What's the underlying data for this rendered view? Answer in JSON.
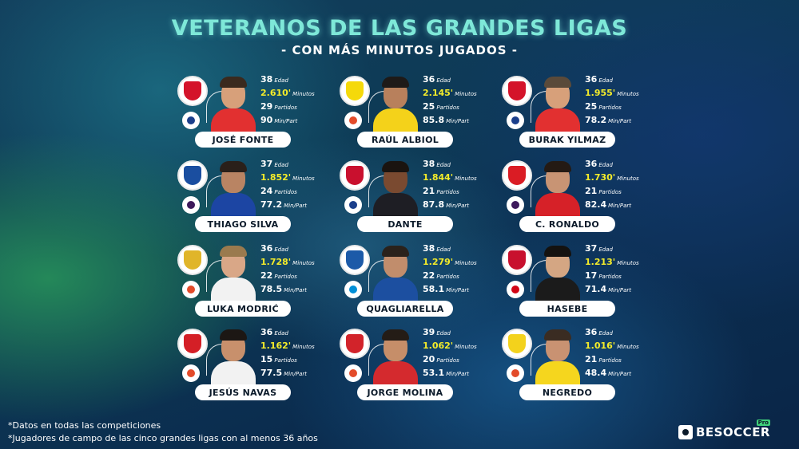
{
  "header": {
    "title": "VETERANOS DE LAS GRANDES LIGAS",
    "subtitle": "- CON MÁS MINUTOS JUGADOS -"
  },
  "labels": {
    "age": "Edad",
    "minutes": "Minutos",
    "matches": "Partidos",
    "min_per_match": "Min/Part"
  },
  "players": [
    {
      "name": "JOSÉ FONTE",
      "age": "38",
      "minutes": "2.610'",
      "matches": "29",
      "min_per_match": "90",
      "club_color": "#d4132a",
      "league_color": "#1b3f8b",
      "shirt_color": "#e23030",
      "skin": "#d7a07a",
      "hair": "#3a2a1e"
    },
    {
      "name": "RAÚL ALBIOL",
      "age": "36",
      "minutes": "2.145'",
      "matches": "25",
      "min_per_match": "85.8",
      "club_color": "#f5d90a",
      "league_color": "#e34b2a",
      "shirt_color": "#f4d21a",
      "skin": "#b8805c",
      "hair": "#1e1a18"
    },
    {
      "name": "BURAK YILMAZ",
      "age": "36",
      "minutes": "1.955'",
      "matches": "25",
      "min_per_match": "78.2",
      "club_color": "#d4132a",
      "league_color": "#1b3f8b",
      "shirt_color": "#e23030",
      "skin": "#d7a07a",
      "hair": "#5a4a3a"
    },
    {
      "name": "THIAGO SILVA",
      "age": "37",
      "minutes": "1.852'",
      "matches": "24",
      "min_per_match": "77.2",
      "club_color": "#1a4ea0",
      "league_color": "#3d195b",
      "shirt_color": "#1c45a3",
      "skin": "#b98463",
      "hair": "#2a201a"
    },
    {
      "name": "DANTE",
      "age": "38",
      "minutes": "1.844'",
      "matches": "21",
      "min_per_match": "87.8",
      "club_color": "#c9102e",
      "league_color": "#1b3f8b",
      "shirt_color": "#1e1e24",
      "skin": "#7a4a30",
      "hair": "#1a1410"
    },
    {
      "name": "C. RONALDO",
      "age": "36",
      "minutes": "1.730'",
      "matches": "21",
      "min_per_match": "82.4",
      "club_color": "#da1c24",
      "league_color": "#3d195b",
      "shirt_color": "#d62128",
      "skin": "#c89474",
      "hair": "#241a14"
    },
    {
      "name": "LUKA MODRIĆ",
      "age": "36",
      "minutes": "1.728'",
      "matches": "22",
      "min_per_match": "78.5",
      "club_color": "#e0b52a",
      "league_color": "#e34b2a",
      "shirt_color": "#f2f2f2",
      "skin": "#d9a787",
      "hair": "#9a7a4e"
    },
    {
      "name": "QUAGLIARELLA",
      "age": "38",
      "minutes": "1.279'",
      "matches": "22",
      "min_per_match": "58.1",
      "club_color": "#1c5aa8",
      "league_color": "#008fd7",
      "shirt_color": "#1c4fa0",
      "skin": "#c18d6c",
      "hair": "#2a221c"
    },
    {
      "name": "HASEBE",
      "age": "37",
      "minutes": "1.213'",
      "matches": "17",
      "min_per_match": "71.4",
      "club_color": "#c8102e",
      "league_color": "#d20515",
      "shirt_color": "#1b1b1b",
      "skin": "#d4a683",
      "hair": "#141210"
    },
    {
      "name": "JESÚS NAVAS",
      "age": "36",
      "minutes": "1.162'",
      "matches": "15",
      "min_per_match": "77.5",
      "club_color": "#d41f26",
      "league_color": "#e34b2a",
      "shirt_color": "#f2f2f2",
      "skin": "#c8906c",
      "hair": "#1c1714"
    },
    {
      "name": "JORGE MOLINA",
      "age": "39",
      "minutes": "1.062'",
      "matches": "20",
      "min_per_match": "53.1",
      "club_color": "#d2232a",
      "league_color": "#e34b2a",
      "shirt_color": "#d42a2e",
      "skin": "#c68e69",
      "hair": "#241c16"
    },
    {
      "name": "NEGREDO",
      "age": "36",
      "minutes": "1.016'",
      "matches": "21",
      "min_per_match": "48.4",
      "club_color": "#f3d21c",
      "league_color": "#e34b2a",
      "shirt_color": "#f5d61e",
      "skin": "#c99272",
      "hair": "#3a2c22"
    }
  ],
  "footnotes": [
    "*Datos en todas las competiciones",
    "*Jugadores de campo de las cinco grandes ligas con al menos 36 años"
  ],
  "brand": {
    "name": "BESOCCER",
    "tag": "Pro"
  }
}
